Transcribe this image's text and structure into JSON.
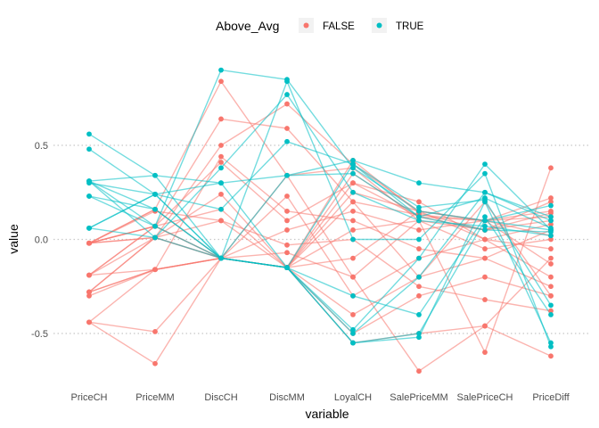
{
  "chart_data": {
    "type": "parallel-coordinates",
    "title": "",
    "xlabel": "variable",
    "ylabel": "value",
    "variables": [
      "PriceCH",
      "PriceMM",
      "DiscCH",
      "DiscMM",
      "LoyalCH",
      "SalePriceMM",
      "SalePriceCH",
      "PriceDiff"
    ],
    "ylim": [
      -0.75,
      1.0
    ],
    "yticks": [
      -0.5,
      0.0,
      0.5
    ],
    "ytick_labels": [
      "-0.5",
      "0.0",
      "0.5"
    ],
    "grid": "major y (dotted)",
    "legend": {
      "title": "Above_Avg",
      "placement": "top",
      "entries": [
        {
          "label": "FALSE",
          "color": "#F8766D"
        },
        {
          "label": "TRUE",
          "color": "#00BFC4"
        }
      ]
    },
    "series": [
      {
        "name": "FALSE",
        "color": "#F8766D",
        "lines": [
          [
            -0.02,
            0.07,
            -0.1,
            -0.15,
            0.35,
            0.12,
            0.05,
            0.2
          ],
          [
            -0.02,
            0.01,
            -0.1,
            -0.15,
            0.25,
            0.15,
            0.1,
            0.12
          ],
          [
            -0.02,
            0.15,
            0.1,
            -0.15,
            0.3,
            0.12,
            0.1,
            0.15
          ],
          [
            -0.19,
            -0.16,
            -0.1,
            -0.15,
            -0.1,
            0.15,
            0.0,
            -0.05
          ],
          [
            -0.19,
            0.07,
            0.16,
            -0.15,
            0.05,
            0.1,
            0.05,
            0.1
          ],
          [
            -0.28,
            -0.16,
            -0.1,
            0.23,
            -0.3,
            -0.1,
            0.0,
            -0.2
          ],
          [
            -0.28,
            0.01,
            0.24,
            -0.15,
            0.2,
            0.13,
            0.1,
            0.02
          ],
          [
            -0.3,
            -0.16,
            -0.1,
            -0.15,
            -0.4,
            -0.2,
            -0.1,
            -0.25
          ],
          [
            -0.44,
            -0.49,
            -0.1,
            -0.15,
            -0.5,
            -0.3,
            -0.2,
            -0.3
          ],
          [
            -0.44,
            -0.66,
            -0.1,
            0.34,
            -0.2,
            -0.7,
            -0.46,
            -0.62
          ],
          [
            -0.02,
            0.16,
            0.84,
            0.34,
            0.38,
            0.1,
            -0.6,
            0.38
          ],
          [
            -0.19,
            0.07,
            0.64,
            0.59,
            0.2,
            -0.2,
            0.2,
            -0.3
          ],
          [
            -0.02,
            0.01,
            0.5,
            0.72,
            0.4,
            0.15,
            0.1,
            0.22
          ],
          [
            -0.28,
            -0.16,
            0.44,
            0.15,
            0.1,
            -0.05,
            -0.1,
            0.05
          ],
          [
            -0.02,
            0.07,
            0.41,
            0.1,
            0.3,
            0.2,
            0.0,
            0.08
          ],
          [
            -0.19,
            0.01,
            0.1,
            -0.03,
            0.0,
            -0.25,
            -0.32,
            -0.38
          ],
          [
            -0.02,
            0.16,
            -0.1,
            -0.07,
            -0.2,
            0.1,
            -0.05,
            0.0
          ],
          [
            -0.44,
            -0.16,
            -0.1,
            -0.15,
            0.42,
            0.14,
            0.05,
            0.14
          ],
          [
            -0.02,
            0.07,
            -0.1,
            -0.15,
            -0.55,
            -0.5,
            -0.46,
            -0.1
          ],
          [
            -0.28,
            0.01,
            -0.1,
            0.05,
            0.15,
            0.05,
            0.1,
            -0.13
          ]
        ]
      },
      {
        "name": "TRUE",
        "color": "#00BFC4",
        "lines": [
          [
            0.56,
            0.34,
            -0.1,
            -0.15,
            -0.55,
            -0.5,
            0.1,
            0.05
          ],
          [
            0.48,
            0.24,
            -0.1,
            -0.15,
            -0.5,
            -0.2,
            0.25,
            0.1
          ],
          [
            0.31,
            0.34,
            0.3,
            0.34,
            0.42,
            0.3,
            0.25,
            0.12
          ],
          [
            0.31,
            0.16,
            -0.1,
            -0.15,
            -0.48,
            -0.1,
            0.4,
            0.05
          ],
          [
            0.3,
            0.24,
            0.16,
            0.52,
            0.4,
            0.17,
            0.21,
            -0.35
          ],
          [
            0.23,
            0.07,
            0.9,
            0.85,
            0.38,
            0.15,
            0.1,
            0.18
          ],
          [
            0.06,
            0.24,
            -0.1,
            -0.15,
            -0.55,
            -0.52,
            0.2,
            -0.55
          ],
          [
            0.06,
            0.01,
            0.38,
            0.77,
            0.25,
            0.1,
            0.07,
            0.02
          ],
          [
            0.31,
            0.07,
            -0.1,
            -0.15,
            0.4,
            0.12,
            0.22,
            0.06
          ],
          [
            0.31,
            0.01,
            -0.1,
            0.84,
            0.0,
            0.0,
            0.35,
            -0.57
          ],
          [
            0.06,
            0.24,
            0.3,
            -0.15,
            -0.3,
            -0.4,
            0.12,
            -0.4
          ],
          [
            0.23,
            0.16,
            -0.1,
            0.34,
            0.35,
            0.12,
            0.05,
            0.04
          ]
        ]
      }
    ]
  }
}
